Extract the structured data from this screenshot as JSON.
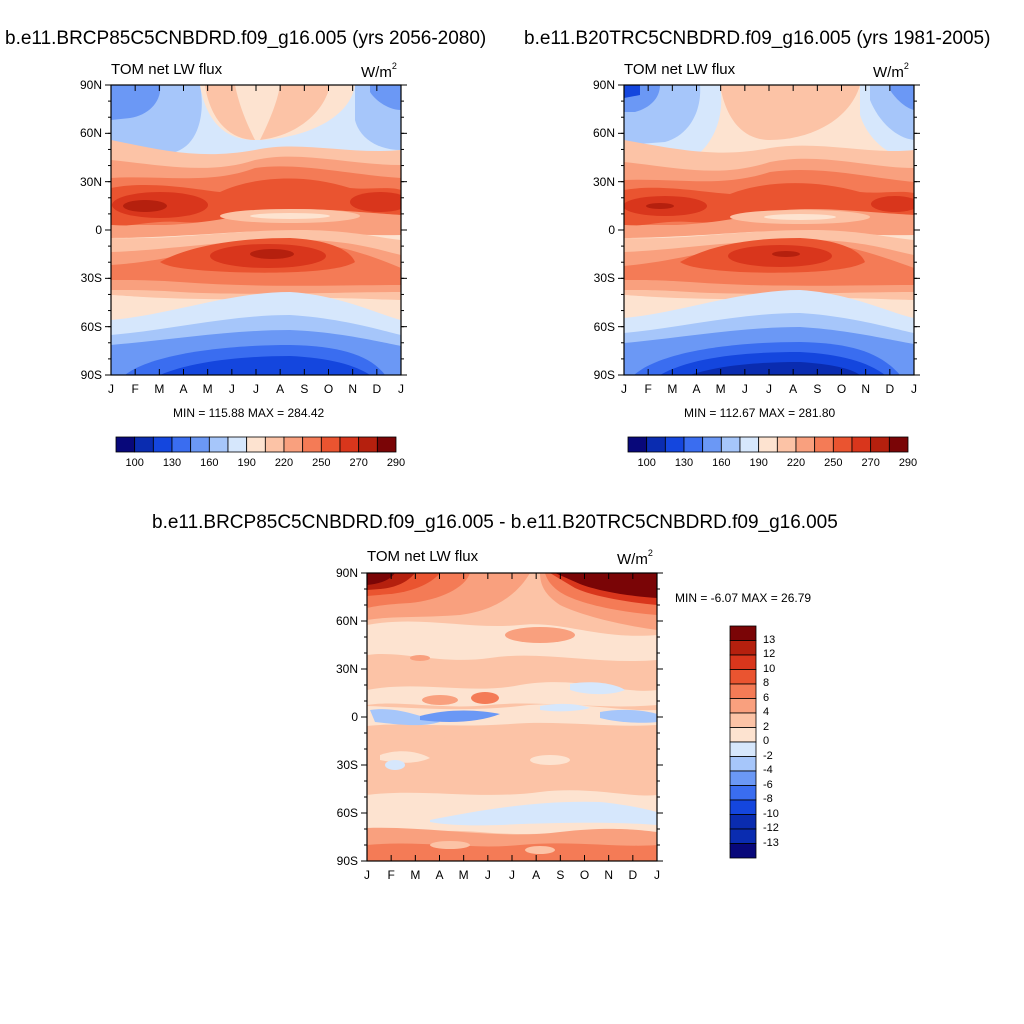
{
  "panels": [
    {
      "title": "b.e11.BRCP85C5CNBDRD.f09_g16.005 (yrs 2056-2080)",
      "subtitle": "TOM net LW flux",
      "units": "W/m",
      "units_sup": "2",
      "minmax": "MIN = 115.88 MAX = 284.42"
    },
    {
      "title": "b.e11.B20TRC5CNBDRD.f09_g16.005 (yrs 1981-2005)",
      "subtitle": "TOM net LW flux",
      "units": "W/m",
      "units_sup": "2",
      "minmax": "MIN = 112.67 MAX = 281.80"
    },
    {
      "title": "b.e11.BRCP85C5CNBDRD.f09_g16.005 - b.e11.B20TRC5CNBDRD.f09_g16.005",
      "subtitle": "TOM net LW flux",
      "units": "W/m",
      "units_sup": "2",
      "minmax": "MIN =  -6.07 MAX =  26.79"
    }
  ],
  "chart_data": [
    {
      "type": "heatmap",
      "title": "b.e11.BRCP85C5CNBDRD.f09_g16.005 (yrs 2056-2080)",
      "subtitle": "TOM net LW flux",
      "units": "W/m2",
      "x_ticks": [
        "J",
        "F",
        "M",
        "A",
        "M",
        "J",
        "J",
        "A",
        "S",
        "O",
        "N",
        "D",
        "J"
      ],
      "y_ticks": [
        "90N",
        "60N",
        "30N",
        "0",
        "30S",
        "60S",
        "90S"
      ],
      "ylim": [
        -90,
        90
      ],
      "min": 115.88,
      "max": 284.42,
      "colorbar_labels": [
        "100",
        "130",
        "160",
        "190",
        "220",
        "250",
        "270",
        "290"
      ],
      "colorbar_colors": [
        "#08087a",
        "#0a2cb0",
        "#1446de",
        "#3a6df0",
        "#6b98f5",
        "#a6c6fa",
        "#d6e7fc",
        "#fde3d0",
        "#fcc3a6",
        "#f9a07e",
        "#f47b56",
        "#ea5430",
        "#d9361c",
        "#b5200e",
        "#7a0506"
      ]
    },
    {
      "type": "heatmap",
      "title": "b.e11.B20TRC5CNBDRD.f09_g16.005 (yrs 1981-2005)",
      "subtitle": "TOM net LW flux",
      "units": "W/m2",
      "x_ticks": [
        "J",
        "F",
        "M",
        "A",
        "M",
        "J",
        "J",
        "A",
        "S",
        "O",
        "N",
        "D",
        "J"
      ],
      "y_ticks": [
        "90N",
        "60N",
        "30N",
        "0",
        "30S",
        "60S",
        "90S"
      ],
      "ylim": [
        -90,
        90
      ],
      "min": 112.67,
      "max": 281.8,
      "colorbar_labels": [
        "100",
        "130",
        "160",
        "190",
        "220",
        "250",
        "270",
        "290"
      ],
      "colorbar_colors": [
        "#08087a",
        "#0a2cb0",
        "#1446de",
        "#3a6df0",
        "#6b98f5",
        "#a6c6fa",
        "#d6e7fc",
        "#fde3d0",
        "#fcc3a6",
        "#f9a07e",
        "#f47b56",
        "#ea5430",
        "#d9361c",
        "#b5200e",
        "#7a0506"
      ]
    },
    {
      "type": "heatmap",
      "title": "b.e11.BRCP85C5CNBDRD.f09_g16.005 - b.e11.B20TRC5CNBDRD.f09_g16.005",
      "subtitle": "TOM net LW flux",
      "units": "W/m2",
      "x_ticks": [
        "J",
        "F",
        "M",
        "A",
        "M",
        "J",
        "J",
        "A",
        "S",
        "O",
        "N",
        "D",
        "J"
      ],
      "y_ticks": [
        "90N",
        "60N",
        "30N",
        "0",
        "30S",
        "60S",
        "90S"
      ],
      "ylim": [
        -90,
        90
      ],
      "min": -6.07,
      "max": 26.79,
      "colorbar_labels": [
        "13",
        "12",
        "10",
        "8",
        "6",
        "4",
        "2",
        "0",
        "-2",
        "-4",
        "-6",
        "-8",
        "-10",
        "-12",
        "-13"
      ],
      "colorbar_colors": [
        "#7a0506",
        "#b5200e",
        "#d9361c",
        "#ea5430",
        "#f47b56",
        "#f9a07e",
        "#fcc3a6",
        "#fde3d0",
        "#d6e7fc",
        "#a6c6fa",
        "#6b98f5",
        "#3a6df0",
        "#1446de",
        "#0a2cb0",
        "#0a2cb0",
        "#08087a"
      ]
    }
  ]
}
